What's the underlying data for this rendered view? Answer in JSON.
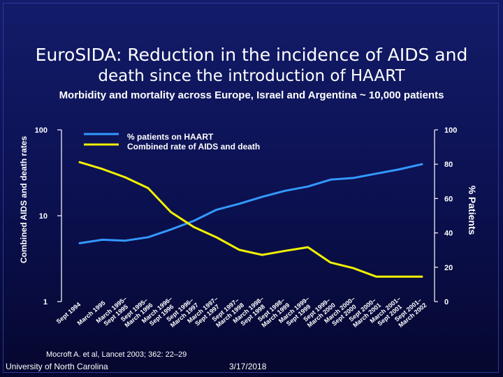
{
  "title_line1_lead": "EuroSIDA:",
  "title_line1_rest": " Reduction in the incidence of AIDS and",
  "title_line2": "death since the introduction of HAART",
  "subtitle": "Morbidity and mortality across Europe, Israel and Argentina ~ 10,000 patients",
  "citation": "Mocroft A. et al, Lancet 2003; 362: 22–29",
  "footer_left": "University of North Carolina",
  "footer_date": "3/17/2018",
  "colors": {
    "haart": "#3399ff",
    "aids_death": "#f2f200",
    "axis": "#ffffff"
  },
  "chart_data": {
    "type": "line",
    "title": "EuroSIDA: Reduction in the incidence of AIDS and death since the introduction of HAART",
    "ylabel_left": "Combined AIDS and death rates",
    "ylabel_right": "% Patients",
    "left_axis": {
      "scale": "log",
      "range": [
        1,
        100
      ],
      "ticks": [
        "1",
        "10",
        "100"
      ]
    },
    "right_axis": {
      "scale": "linear",
      "range": [
        0,
        100
      ],
      "ticks": [
        "0",
        "20",
        "40",
        "60",
        "80",
        "100"
      ]
    },
    "categories": [
      "Sept 1994",
      "March 1995",
      "March 1995–Sept 1995",
      "Sept 1995–March 1996",
      "March 1996–Sept 1996",
      "Sept 1996–March 1997",
      "March 1997–Sept 1997",
      "Sept 1997–March 1998",
      "March 1998–Sept 1998",
      "Sept 1998–March 1999",
      "March 1999–Sept 1999",
      "Sept 1999–March 2000",
      "March 2000–Sept 2000",
      "Sept 2000–March 2001",
      "March 2001–Sept 2001",
      "Sept 2001–March 2002"
    ],
    "series": [
      {
        "name": "% patients on HAART",
        "axis": "right",
        "values": [
          34,
          36,
          35.5,
          37.5,
          42,
          47,
          53.5,
          57,
          61,
          64.5,
          67,
          71,
          72,
          74.5,
          77,
          80
        ]
      },
      {
        "name": "Combined rate of AIDS and death",
        "axis": "left",
        "values": [
          42,
          35,
          28,
          21,
          11,
          7.4,
          5.6,
          4.0,
          3.5,
          3.9,
          4.3,
          2.85,
          2.45,
          1.95,
          1.95,
          1.95
        ]
      }
    ],
    "legend_position": "top-left"
  }
}
